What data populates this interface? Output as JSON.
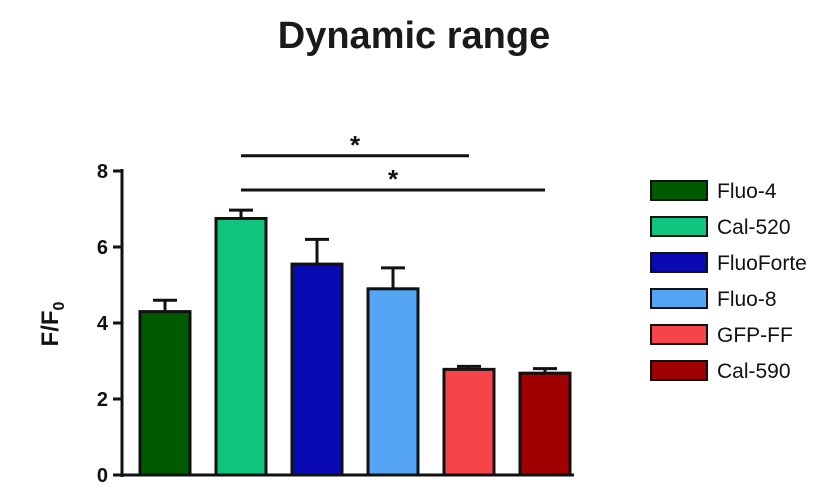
{
  "chart_data": {
    "type": "bar",
    "title": "Dynamic range",
    "ylabel_main": "F/F",
    "ylabel_sub": "0",
    "xlabel": "",
    "ylim": [
      0,
      8
    ],
    "yticks": [
      0,
      2,
      4,
      6,
      8
    ],
    "categories": [
      "Fluo-4",
      "Cal-520",
      "FluoForte",
      "Fluo-8",
      "GFP-FF",
      "Cal-590"
    ],
    "values": [
      4.3,
      6.75,
      5.55,
      4.9,
      2.78,
      2.68
    ],
    "errors": [
      0.3,
      0.22,
      0.65,
      0.55,
      0.08,
      0.12
    ],
    "colors": [
      "#005a00",
      "#0fc47f",
      "#0a0ab4",
      "#55a5f5",
      "#f5454a",
      "#a00000"
    ],
    "legend_position": "right",
    "grid": false,
    "significance": [
      {
        "from": "Cal-520",
        "to": "GFP-FF",
        "label": "*",
        "y": 8.4
      },
      {
        "from": "Cal-520",
        "to": "Cal-590",
        "label": "*",
        "y": 7.5
      }
    ]
  }
}
